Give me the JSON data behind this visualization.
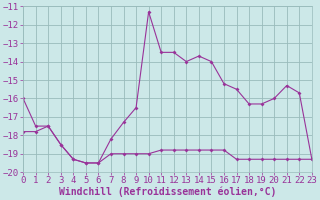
{
  "xlabel": "Windchill (Refroidissement éolien,°C)",
  "line1_x": [
    0,
    1,
    2,
    3,
    4,
    5,
    6,
    7,
    8,
    9,
    10,
    11,
    12,
    13,
    14,
    15,
    16,
    17,
    18,
    19,
    20,
    21,
    22,
    23
  ],
  "line1_y": [
    -16.0,
    -17.5,
    -17.5,
    -18.5,
    -19.3,
    -19.5,
    -19.5,
    -18.2,
    -17.3,
    -16.5,
    -11.3,
    -13.5,
    -13.5,
    -14.0,
    -13.7,
    -14.0,
    -15.2,
    -15.5,
    -16.3,
    -16.3,
    -16.0,
    -15.3,
    -15.7,
    -19.3
  ],
  "line2_x": [
    0,
    1,
    2,
    3,
    4,
    5,
    6,
    7,
    8,
    9,
    10,
    11,
    12,
    13,
    14,
    15,
    16,
    17,
    18,
    19,
    20,
    21,
    22,
    23
  ],
  "line2_y": [
    -17.8,
    -17.8,
    -17.5,
    -18.5,
    -19.3,
    -19.5,
    -19.5,
    -19.0,
    -19.0,
    -19.0,
    -19.0,
    -18.8,
    -18.8,
    -18.8,
    -18.8,
    -18.8,
    -18.8,
    -19.3,
    -19.3,
    -19.3,
    -19.3,
    -19.3,
    -19.3,
    -19.3
  ],
  "line_color": "#993399",
  "bg_color": "#cce8e8",
  "grid_color": "#99bbbb",
  "ylim": [
    -20,
    -11
  ],
  "xlim": [
    0,
    23
  ],
  "yticks": [
    -20,
    -19,
    -18,
    -17,
    -16,
    -15,
    -14,
    -13,
    -12,
    -11
  ],
  "xticks": [
    0,
    1,
    2,
    3,
    4,
    5,
    6,
    7,
    8,
    9,
    10,
    11,
    12,
    13,
    14,
    15,
    16,
    17,
    18,
    19,
    20,
    21,
    22,
    23
  ],
  "tick_fontsize": 6.5,
  "xlabel_fontsize": 7.0
}
